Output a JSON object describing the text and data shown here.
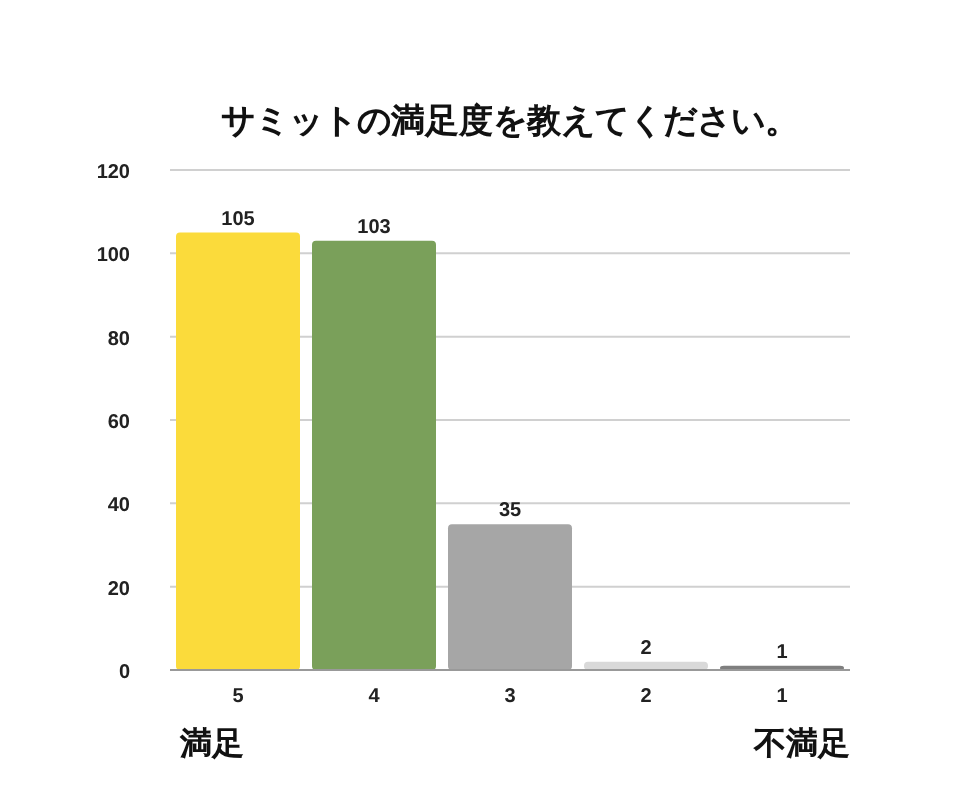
{
  "chart_data": {
    "type": "bar",
    "title": "サミットの満足度を教えてください。",
    "categories": [
      "5",
      "4",
      "3",
      "2",
      "1"
    ],
    "values": [
      105,
      103,
      35,
      2,
      1
    ],
    "colors": [
      "#fbdb3b",
      "#7aa05a",
      "#a6a6a6",
      "#d9d9d9",
      "#7f7f7f"
    ],
    "ylim": [
      0,
      120
    ],
    "yticks": [
      0,
      20,
      40,
      60,
      80,
      100,
      120
    ],
    "grid": "y",
    "data_labels": true,
    "annotations": [
      "満足",
      "不満足"
    ]
  }
}
